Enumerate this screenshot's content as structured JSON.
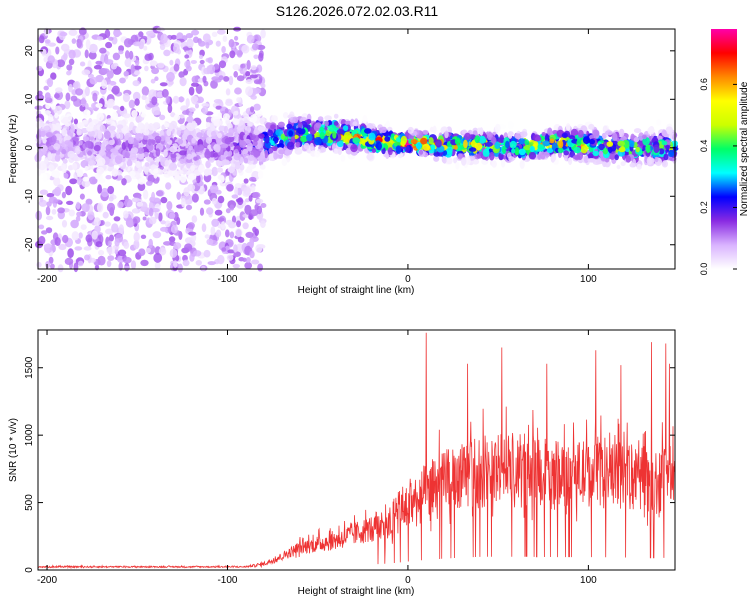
{
  "title": "S126.2026.072.02.03.R11",
  "chart_data": [
    {
      "type": "heatmap",
      "xlabel": "Height of straight line (km)",
      "ylabel": "Frequency (Hz)",
      "xlim": [
        -205,
        148
      ],
      "ylim": [
        -25,
        24.5
      ],
      "x_ticks": [
        -200,
        -100,
        0,
        100
      ],
      "y_ticks": [
        -20,
        -10,
        0,
        10,
        20
      ],
      "colorbar": {
        "label": "Normalized spectral amplitude",
        "range": [
          0,
          0.78
        ],
        "ticks": [
          0.0,
          0.2,
          0.4,
          0.6
        ],
        "tick_labels": [
          "0.0",
          "0.2",
          "0.4",
          "0.6"
        ],
        "colors": [
          "#ffffff",
          "#d9b3ff",
          "#8a2be2",
          "#0000ff",
          "#00ffff",
          "#00ff66",
          "#ccff00",
          "#ffff00",
          "#ff8800",
          "#ff0000",
          "#ff00aa"
        ]
      },
      "band": {
        "center_x": [
          -200,
          -150,
          -100,
          -80,
          -60,
          -40,
          -20,
          0,
          20,
          40,
          60,
          80,
          100,
          120,
          148
        ],
        "center_y": [
          1,
          0,
          0,
          1,
          3,
          3,
          1.5,
          1,
          0.5,
          0.5,
          0,
          1,
          0.5,
          0,
          0
        ],
        "half_width": [
          5,
          5,
          5,
          4,
          3,
          3,
          2.5,
          2,
          2.5,
          2.5,
          2.5,
          2.5,
          3,
          3,
          3
        ],
        "peak_amplitude": [
          0.15,
          0.18,
          0.2,
          0.3,
          0.45,
          0.55,
          0.6,
          0.7,
          0.6,
          0.55,
          0.5,
          0.55,
          0.5,
          0.45,
          0.4
        ],
        "scatter_extent_x": [
          -205,
          -80
        ],
        "scatter_extent_y": [
          -25,
          24.5
        ]
      }
    },
    {
      "type": "line",
      "xlabel": "Height of straight line (km)",
      "ylabel": "SNR (10 * v/v)",
      "xlim": [
        -205,
        148
      ],
      "ylim": [
        0,
        1780
      ],
      "x_ticks": [
        -200,
        -100,
        0,
        100
      ],
      "y_ticks": [
        0,
        500,
        1000,
        1500
      ],
      "color": "#ee3333",
      "envelope": {
        "x": [
          -205,
          -150,
          -90,
          -80,
          -70,
          -60,
          -40,
          -20,
          -10,
          0,
          10,
          20,
          30,
          40,
          50,
          60,
          80,
          100,
          120,
          140,
          148
        ],
        "mean": [
          22,
          22,
          22,
          40,
          90,
          150,
          200,
          280,
          320,
          420,
          500,
          560,
          620,
          650,
          660,
          660,
          640,
          640,
          620,
          600,
          600
        ],
        "spread": [
          10,
          10,
          10,
          30,
          60,
          100,
          150,
          200,
          300,
          350,
          450,
          500,
          500,
          550,
          550,
          550,
          500,
          500,
          500,
          500,
          500
        ]
      },
      "peaks": [
        {
          "x": 10,
          "y": 1760
        },
        {
          "x": 135,
          "y": 1690
        },
        {
          "x": 143,
          "y": 1680
        },
        {
          "x": 52,
          "y": 1650
        },
        {
          "x": 104,
          "y": 1630
        },
        {
          "x": 33,
          "y": 1530
        },
        {
          "x": 77,
          "y": 1530
        },
        {
          "x": 118,
          "y": 1520
        },
        {
          "x": 145,
          "y": 1530
        }
      ]
    }
  ]
}
